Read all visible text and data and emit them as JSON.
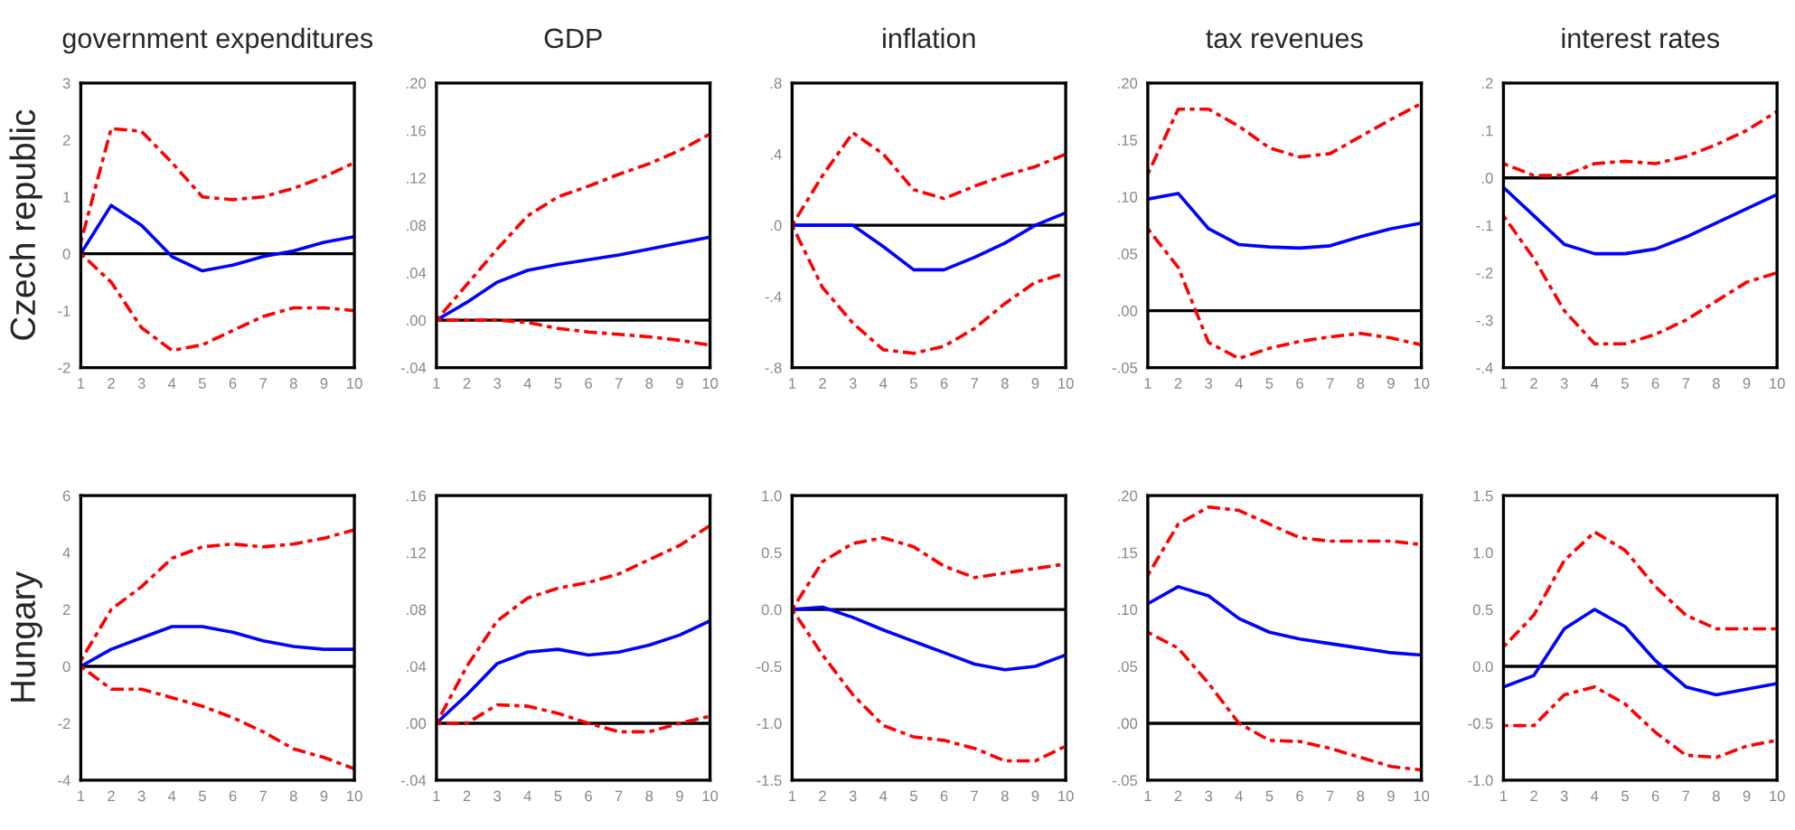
{
  "chart_data": [
    {
      "type": "line",
      "title": "government expenditures",
      "ylabel": "Czech republic",
      "x": [
        1,
        2,
        3,
        4,
        5,
        6,
        7,
        8,
        9,
        10
      ],
      "xlim": [
        1,
        10
      ],
      "xticks": [
        1,
        2,
        3,
        4,
        5,
        6,
        7,
        8,
        9,
        10
      ],
      "ylim": [
        -2,
        3
      ],
      "yticks": [
        -2,
        -1,
        0,
        1,
        2,
        3
      ],
      "ref_lines": [
        {
          "axis": "y",
          "value": 0,
          "color": "#000000"
        }
      ],
      "series": [
        {
          "color": "#0000ff",
          "line_style": "solid",
          "values": [
            0,
            0.85,
            0.5,
            -0.05,
            -0.3,
            -0.2,
            -0.05,
            0.05,
            0.2,
            0.3
          ]
        },
        {
          "color": "#ff0000",
          "line_style": "dotted",
          "values": [
            0.2,
            2.2,
            2.15,
            1.6,
            1.0,
            0.95,
            1.0,
            1.15,
            1.35,
            1.6
          ]
        },
        {
          "color": "#ff0000",
          "line_style": "dotted",
          "values": [
            0,
            -0.5,
            -1.3,
            -1.7,
            -1.6,
            -1.35,
            -1.1,
            -0.95,
            -0.95,
            -1.0
          ]
        }
      ]
    },
    {
      "type": "line",
      "title": "GDP",
      "x": [
        1,
        2,
        3,
        4,
        5,
        6,
        7,
        8,
        9,
        10
      ],
      "xlim": [
        1,
        10
      ],
      "xticks": [
        1,
        2,
        3,
        4,
        5,
        6,
        7,
        8,
        9,
        10
      ],
      "ylim": [
        -0.04,
        0.2
      ],
      "yticks": [
        {
          "value": -0.04,
          "label": "-.04"
        },
        {
          "value": 0,
          "label": ".00"
        },
        {
          "value": 0.04,
          "label": ".04"
        },
        {
          "value": 0.08,
          "label": ".08"
        },
        {
          "value": 0.12,
          "label": ".12"
        },
        {
          "value": 0.16,
          "label": ".16"
        },
        {
          "value": 0.2,
          "label": ".20"
        }
      ],
      "ref_lines": [
        {
          "axis": "y",
          "value": 0,
          "color": "#000000"
        }
      ],
      "series": [
        {
          "color": "#0000ff",
          "line_style": "solid",
          "values": [
            0.0,
            0.015,
            0.032,
            0.042,
            0.047,
            0.051,
            0.055,
            0.06,
            0.065,
            0.07
          ]
        },
        {
          "color": "#ff0000",
          "line_style": "dotted",
          "values": [
            0,
            0.03,
            0.06,
            0.088,
            0.104,
            0.113,
            0.123,
            0.132,
            0.143,
            0.157
          ]
        },
        {
          "color": "#ff0000",
          "line_style": "dotted",
          "values": [
            0,
            0,
            0,
            -0.002,
            -0.007,
            -0.01,
            -0.012,
            -0.014,
            -0.017,
            -0.021
          ]
        }
      ]
    },
    {
      "type": "line",
      "title": "inflation",
      "x": [
        1,
        2,
        3,
        4,
        5,
        6,
        7,
        8,
        9,
        10
      ],
      "xlim": [
        1,
        10
      ],
      "xticks": [
        1,
        2,
        3,
        4,
        5,
        6,
        7,
        8,
        9,
        10
      ],
      "ylim": [
        -0.8,
        0.8
      ],
      "yticks": [
        {
          "value": -0.8,
          "label": "-.8"
        },
        {
          "value": -0.4,
          "label": "-.4"
        },
        {
          "value": 0,
          "label": ".0"
        },
        {
          "value": 0.4,
          "label": ".4"
        },
        {
          "value": 0.8,
          "label": ".8"
        }
      ],
      "ref_lines": [
        {
          "axis": "y",
          "value": 0,
          "color": "#000000"
        }
      ],
      "series": [
        {
          "color": "#0000ff",
          "line_style": "solid",
          "values": [
            0,
            0,
            0,
            -0.12,
            -0.25,
            -0.25,
            -0.18,
            -0.1,
            0,
            0.07
          ]
        },
        {
          "color": "#ff0000",
          "line_style": "dotted",
          "values": [
            0,
            0.28,
            0.52,
            0.4,
            0.2,
            0.15,
            0.22,
            0.28,
            0.33,
            0.4
          ]
        },
        {
          "color": "#ff0000",
          "line_style": "dotted",
          "values": [
            0,
            -0.35,
            -0.55,
            -0.7,
            -0.72,
            -0.68,
            -0.58,
            -0.44,
            -0.32,
            -0.27
          ]
        }
      ]
    },
    {
      "type": "line",
      "title": "tax revenues",
      "x": [
        1,
        2,
        3,
        4,
        5,
        6,
        7,
        8,
        9,
        10
      ],
      "xlim": [
        1,
        10
      ],
      "xticks": [
        1,
        2,
        3,
        4,
        5,
        6,
        7,
        8,
        9,
        10
      ],
      "ylim": [
        -0.05,
        0.2
      ],
      "yticks": [
        {
          "value": -0.05,
          "label": "-.05"
        },
        {
          "value": 0,
          "label": ".00"
        },
        {
          "value": 0.05,
          "label": ".05"
        },
        {
          "value": 0.1,
          "label": ".10"
        },
        {
          "value": 0.15,
          "label": ".15"
        },
        {
          "value": 0.2,
          "label": ".20"
        }
      ],
      "ref_lines": [
        {
          "axis": "y",
          "value": 0,
          "color": "#000000"
        }
      ],
      "series": [
        {
          "color": "#0000ff",
          "line_style": "solid",
          "values": [
            0.098,
            0.103,
            0.072,
            0.058,
            0.056,
            0.055,
            0.057,
            0.065,
            0.072,
            0.077
          ]
        },
        {
          "color": "#ff0000",
          "line_style": "dotted",
          "values": [
            0.12,
            0.177,
            0.177,
            0.162,
            0.143,
            0.135,
            0.138,
            0.153,
            0.168,
            0.182
          ]
        },
        {
          "color": "#ff0000",
          "line_style": "dotted",
          "values": [
            0.072,
            0.038,
            -0.028,
            -0.042,
            -0.033,
            -0.027,
            -0.023,
            -0.02,
            -0.024,
            -0.03
          ]
        }
      ]
    },
    {
      "type": "line",
      "title": "interest rates",
      "x": [
        1,
        2,
        3,
        4,
        5,
        6,
        7,
        8,
        9,
        10
      ],
      "xlim": [
        1,
        10
      ],
      "xticks": [
        1,
        2,
        3,
        4,
        5,
        6,
        7,
        8,
        9,
        10
      ],
      "ylim": [
        -0.4,
        0.2
      ],
      "yticks": [
        {
          "value": -0.4,
          "label": "-.4"
        },
        {
          "value": -0.3,
          "label": "-.3"
        },
        {
          "value": -0.2,
          "label": "-.2"
        },
        {
          "value": -0.1,
          "label": "-.1"
        },
        {
          "value": 0,
          "label": ".0"
        },
        {
          "value": 0.1,
          "label": ".1"
        },
        {
          "value": 0.2,
          "label": ".2"
        }
      ],
      "ref_lines": [
        {
          "axis": "y",
          "value": 0,
          "color": "#000000"
        }
      ],
      "series": [
        {
          "color": "#0000ff",
          "line_style": "solid",
          "values": [
            -0.02,
            -0.08,
            -0.14,
            -0.16,
            -0.16,
            -0.15,
            -0.125,
            -0.095,
            -0.065,
            -0.035
          ]
        },
        {
          "color": "#ff0000",
          "line_style": "dotted",
          "values": [
            0.03,
            0.005,
            0.005,
            0.03,
            0.035,
            0.03,
            0.045,
            0.07,
            0.1,
            0.14
          ]
        },
        {
          "color": "#ff0000",
          "line_style": "dotted",
          "values": [
            -0.08,
            -0.17,
            -0.28,
            -0.35,
            -0.35,
            -0.33,
            -0.3,
            -0.26,
            -0.22,
            -0.2
          ]
        }
      ]
    },
    {
      "type": "line",
      "ylabel": "Hungary",
      "x": [
        1,
        2,
        3,
        4,
        5,
        6,
        7,
        8,
        9,
        10
      ],
      "xlim": [
        1,
        10
      ],
      "xticks": [
        1,
        2,
        3,
        4,
        5,
        6,
        7,
        8,
        9,
        10
      ],
      "ylim": [
        -4,
        6
      ],
      "yticks": [
        -4,
        -2,
        0,
        2,
        4,
        6
      ],
      "ref_lines": [
        {
          "axis": "y",
          "value": 0,
          "color": "#000000"
        }
      ],
      "series": [
        {
          "color": "#0000ff",
          "line_style": "solid",
          "values": [
            0,
            0.6,
            1.0,
            1.4,
            1.4,
            1.2,
            0.9,
            0.7,
            0.6,
            0.6
          ]
        },
        {
          "color": "#ff0000",
          "line_style": "dotted",
          "values": [
            0.2,
            2.0,
            2.8,
            3.8,
            4.2,
            4.3,
            4.2,
            4.3,
            4.5,
            4.8
          ]
        },
        {
          "color": "#ff0000",
          "line_style": "dotted",
          "values": [
            0,
            -0.8,
            -0.8,
            -1.1,
            -1.4,
            -1.8,
            -2.3,
            -2.9,
            -3.2,
            -3.6
          ]
        }
      ]
    },
    {
      "type": "line",
      "x": [
        1,
        2,
        3,
        4,
        5,
        6,
        7,
        8,
        9,
        10
      ],
      "xlim": [
        1,
        10
      ],
      "xticks": [
        1,
        2,
        3,
        4,
        5,
        6,
        7,
        8,
        9,
        10
      ],
      "ylim": [
        -0.04,
        0.16
      ],
      "yticks": [
        {
          "value": -0.04,
          "label": "-.04"
        },
        {
          "value": 0,
          "label": ".00"
        },
        {
          "value": 0.04,
          "label": ".04"
        },
        {
          "value": 0.08,
          "label": ".08"
        },
        {
          "value": 0.12,
          "label": ".12"
        },
        {
          "value": 0.16,
          "label": ".16"
        }
      ],
      "ref_lines": [
        {
          "axis": "y",
          "value": 0,
          "color": "#000000"
        }
      ],
      "series": [
        {
          "color": "#0000ff",
          "line_style": "solid",
          "values": [
            0.0,
            0.02,
            0.042,
            0.05,
            0.052,
            0.048,
            0.05,
            0.055,
            0.062,
            0.072
          ]
        },
        {
          "color": "#ff0000",
          "line_style": "dotted",
          "values": [
            0.0,
            0.04,
            0.072,
            0.088,
            0.095,
            0.099,
            0.105,
            0.115,
            0.125,
            0.139
          ]
        },
        {
          "color": "#ff0000",
          "line_style": "dotted",
          "values": [
            0,
            0,
            0.013,
            0.012,
            0.007,
            0,
            -0.006,
            -0.006,
            0,
            0.005
          ]
        }
      ]
    },
    {
      "type": "line",
      "x": [
        1,
        2,
        3,
        4,
        5,
        6,
        7,
        8,
        9,
        10
      ],
      "xlim": [
        1,
        10
      ],
      "xticks": [
        1,
        2,
        3,
        4,
        5,
        6,
        7,
        8,
        9,
        10
      ],
      "ylim": [
        -1.5,
        1.0
      ],
      "yticks": [
        {
          "value": -1.5,
          "label": "-1.5"
        },
        {
          "value": -1.0,
          "label": "-1.0"
        },
        {
          "value": -0.5,
          "label": "-0.5"
        },
        {
          "value": 0,
          "label": "0.0"
        },
        {
          "value": 0.5,
          "label": "0.5"
        },
        {
          "value": 1.0,
          "label": "1.0"
        }
      ],
      "ref_lines": [
        {
          "axis": "y",
          "value": 0,
          "color": "#000000"
        }
      ],
      "series": [
        {
          "color": "#0000ff",
          "line_style": "solid",
          "values": [
            0,
            0.02,
            -0.07,
            -0.18,
            -0.28,
            -0.38,
            -0.48,
            -0.53,
            -0.5,
            -0.4
          ]
        },
        {
          "color": "#ff0000",
          "line_style": "dotted",
          "values": [
            0,
            0.42,
            0.58,
            0.63,
            0.55,
            0.38,
            0.28,
            0.32,
            0.36,
            0.4
          ]
        },
        {
          "color": "#ff0000",
          "line_style": "dotted",
          "values": [
            0,
            -0.4,
            -0.75,
            -1.02,
            -1.12,
            -1.15,
            -1.22,
            -1.33,
            -1.33,
            -1.2
          ]
        }
      ]
    },
    {
      "type": "line",
      "x": [
        1,
        2,
        3,
        4,
        5,
        6,
        7,
        8,
        9,
        10
      ],
      "xlim": [
        1,
        10
      ],
      "xticks": [
        1,
        2,
        3,
        4,
        5,
        6,
        7,
        8,
        9,
        10
      ],
      "ylim": [
        -0.05,
        0.2
      ],
      "yticks": [
        {
          "value": -0.05,
          "label": "-.05"
        },
        {
          "value": 0,
          "label": ".00"
        },
        {
          "value": 0.05,
          "label": ".05"
        },
        {
          "value": 0.1,
          "label": ".10"
        },
        {
          "value": 0.15,
          "label": ".15"
        },
        {
          "value": 0.2,
          "label": ".20"
        }
      ],
      "ref_lines": [
        {
          "axis": "y",
          "value": 0,
          "color": "#000000"
        }
      ],
      "series": [
        {
          "color": "#0000ff",
          "line_style": "solid",
          "values": [
            0.105,
            0.12,
            0.112,
            0.092,
            0.08,
            0.074,
            0.07,
            0.066,
            0.062,
            0.06
          ]
        },
        {
          "color": "#ff0000",
          "line_style": "dotted",
          "values": [
            0.13,
            0.175,
            0.19,
            0.187,
            0.175,
            0.163,
            0.16,
            0.16,
            0.16,
            0.157
          ]
        },
        {
          "color": "#ff0000",
          "line_style": "dotted",
          "values": [
            0.08,
            0.066,
            0.035,
            0.0,
            -0.015,
            -0.016,
            -0.022,
            -0.03,
            -0.038,
            -0.041
          ]
        }
      ]
    },
    {
      "type": "line",
      "x": [
        1,
        2,
        3,
        4,
        5,
        6,
        7,
        8,
        9,
        10
      ],
      "xlim": [
        1,
        10
      ],
      "xticks": [
        1,
        2,
        3,
        4,
        5,
        6,
        7,
        8,
        9,
        10
      ],
      "ylim": [
        -1.0,
        1.5
      ],
      "yticks": [
        {
          "value": -1.0,
          "label": "-1.0"
        },
        {
          "value": -0.5,
          "label": "-0.5"
        },
        {
          "value": 0,
          "label": "0.0"
        },
        {
          "value": 0.5,
          "label": "0.5"
        },
        {
          "value": 1.0,
          "label": "1.0"
        },
        {
          "value": 1.5,
          "label": "1.5"
        }
      ],
      "ref_lines": [
        {
          "axis": "y",
          "value": 0,
          "color": "#000000"
        }
      ],
      "series": [
        {
          "color": "#0000ff",
          "line_style": "solid",
          "values": [
            -0.18,
            -0.08,
            0.33,
            0.5,
            0.35,
            0.05,
            -0.18,
            -0.25,
            -0.2,
            -0.15
          ]
        },
        {
          "color": "#ff0000",
          "line_style": "dotted",
          "values": [
            0.17,
            0.45,
            0.93,
            1.18,
            1.02,
            0.7,
            0.45,
            0.33,
            0.33,
            0.33
          ]
        },
        {
          "color": "#ff0000",
          "line_style": "dotted",
          "values": [
            -0.52,
            -0.52,
            -0.25,
            -0.18,
            -0.33,
            -0.58,
            -0.78,
            -0.8,
            -0.7,
            -0.65
          ]
        }
      ]
    }
  ]
}
